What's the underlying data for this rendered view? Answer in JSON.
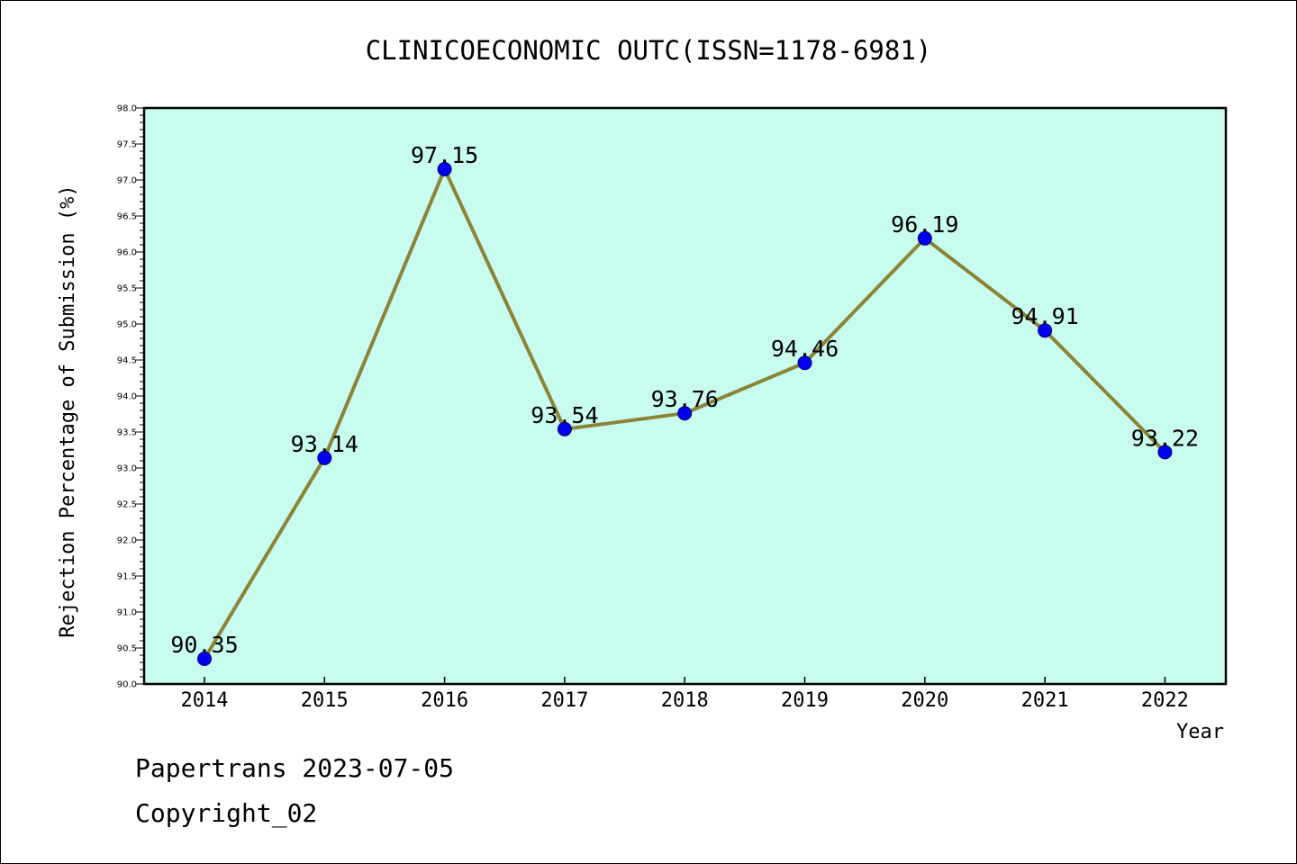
{
  "chart_data": {
    "type": "line",
    "title": "CLINICOECONOMIC OUTC(ISSN=1178-6981)",
    "xlabel": "Year",
    "ylabel": "Rejection Percentage of Submission (%)",
    "categories": [
      "2014",
      "2015",
      "2016",
      "2017",
      "2018",
      "2019",
      "2020",
      "2021",
      "2022"
    ],
    "values": [
      90.35,
      93.14,
      97.15,
      93.54,
      93.76,
      94.46,
      96.19,
      94.91,
      93.22
    ],
    "data_labels": [
      "90.35",
      "93.14",
      "97.15",
      "93.54",
      "93.76",
      "94.46",
      "96.19",
      "94.91",
      "93.22"
    ],
    "y_ticks": [
      "90.0",
      "90.5",
      "91.0",
      "91.5",
      "92.0",
      "92.5",
      "93.0",
      "93.5",
      "94.0",
      "94.5",
      "95.0",
      "95.5",
      "96.0",
      "96.5",
      "97.0",
      "97.5",
      "98.0"
    ],
    "ylim": [
      90.0,
      98.0
    ],
    "grid": false,
    "colors": {
      "plot_background": "#c8fcee",
      "line": "#8b8438",
      "marker": "#0000ee"
    }
  },
  "footer": {
    "line1": "Papertrans 2023-07-05",
    "line2": "Copyright_02"
  }
}
